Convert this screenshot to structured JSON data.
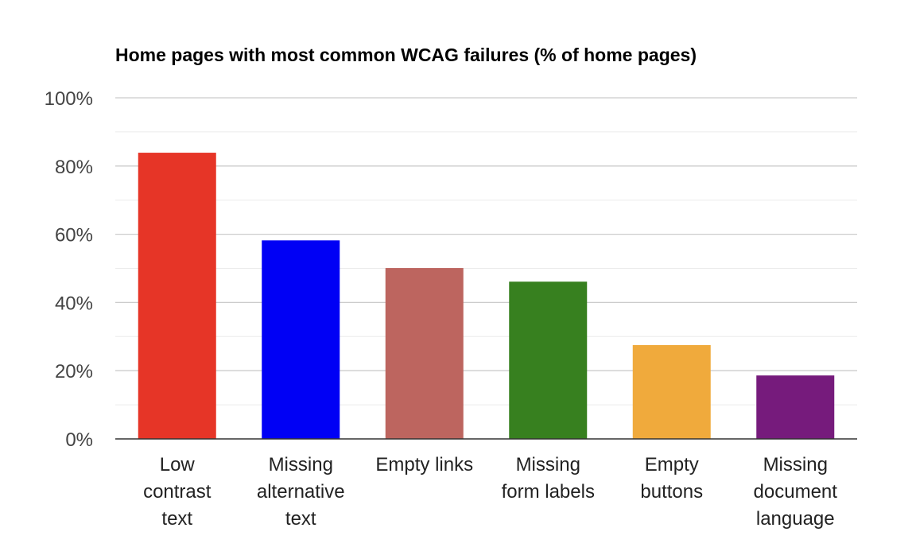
{
  "chart_data": {
    "type": "bar",
    "title": "Home pages with most common WCAG failures (% of home pages)",
    "xlabel": "",
    "ylabel": "",
    "ylim": [
      0,
      100
    ],
    "y_ticks": [
      "0%",
      "20%",
      "40%",
      "60%",
      "80%",
      "100%"
    ],
    "y_tick_values": [
      0,
      20,
      40,
      60,
      80,
      100
    ],
    "y_minor_gridlines": [
      10,
      30,
      50,
      70,
      90
    ],
    "grid": true,
    "legend": "none",
    "categories": [
      [
        "Low",
        "contrast",
        "text"
      ],
      [
        "Missing",
        "alternative",
        "text"
      ],
      [
        "Empty links"
      ],
      [
        "Missing",
        "form labels"
      ],
      [
        "Empty",
        "buttons"
      ],
      [
        "Missing",
        "document",
        "language"
      ]
    ],
    "values": [
      83.9,
      58.2,
      50.1,
      46.1,
      27.5,
      18.6
    ],
    "colors": [
      "#e63527",
      "#0000f5",
      "#bd655f",
      "#37801f",
      "#f0aa3c",
      "#761b7c"
    ]
  }
}
